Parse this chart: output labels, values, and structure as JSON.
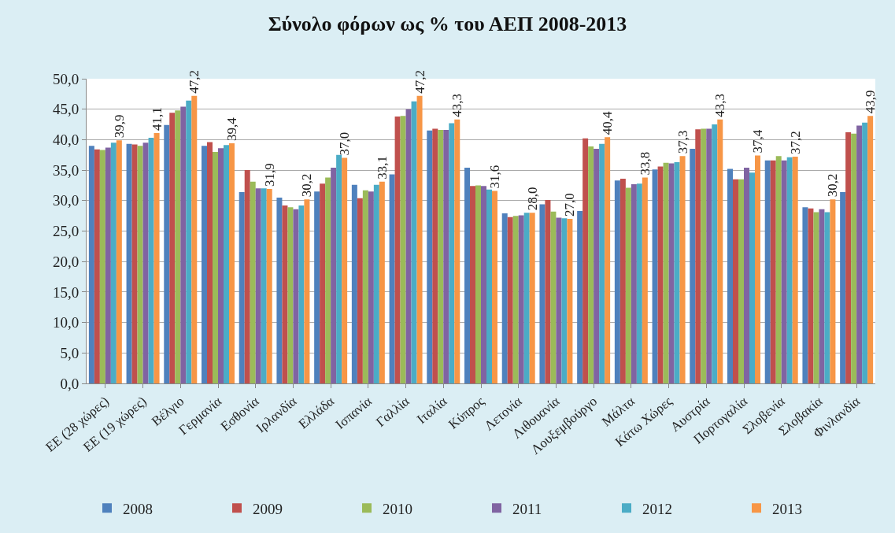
{
  "chart_data": {
    "type": "bar",
    "title": "Σύνολο φόρων ως % του ΑΕΠ 2008-2013",
    "categories": [
      "ΕΕ (28 χώρες)",
      "ΕΕ (19 χώρες)",
      "Βέλγιο",
      "Γερμανία",
      "Εσθονία",
      "Ιρλανδία",
      "Ελλάδα",
      "Ισπανία",
      "Γαλλία",
      "Ιταλία",
      "Κύπρος",
      "Λετονία",
      "Λιθουανία",
      "Λουξεμβούργο",
      "Μάλτα",
      "Κάτω Χώρες",
      "Αυστρία",
      "Πορτογαλία",
      "Σλοβενία",
      "Σλοβακία",
      "Φινλανδία"
    ],
    "series": [
      {
        "name": "2008",
        "color": "#4f81bd",
        "values": [
          39.0,
          39.3,
          42.4,
          39.0,
          31.4,
          30.5,
          31.5,
          32.6,
          34.3,
          41.5,
          35.4,
          27.9,
          29.4,
          28.3,
          33.3,
          35.1,
          38.5,
          35.2,
          36.6,
          28.9,
          31.4
        ]
      },
      {
        "name": "2009",
        "color": "#c0504d",
        "values": [
          38.4,
          39.2,
          44.4,
          39.6,
          35.0,
          29.2,
          32.8,
          30.4,
          43.8,
          41.8,
          32.4,
          27.3,
          30.1,
          40.2,
          33.6,
          35.6,
          41.7,
          33.5,
          36.6,
          28.7,
          41.2
        ]
      },
      {
        "name": "2010",
        "color": "#9bbb59",
        "values": [
          38.3,
          39.0,
          44.8,
          38.0,
          33.1,
          28.9,
          33.8,
          31.7,
          43.9,
          41.6,
          32.5,
          27.5,
          28.2,
          38.9,
          32.1,
          36.2,
          41.8,
          33.5,
          37.3,
          28.1,
          41.0
        ]
      },
      {
        "name": "2011",
        "color": "#8064a2",
        "values": [
          38.7,
          39.5,
          45.4,
          38.6,
          32.0,
          28.6,
          35.4,
          31.5,
          45.0,
          41.6,
          32.4,
          27.6,
          27.2,
          38.5,
          32.7,
          36.1,
          41.8,
          35.4,
          36.6,
          28.6,
          42.3
        ]
      },
      {
        "name": "2012",
        "color": "#4bacc6",
        "values": [
          39.5,
          40.3,
          46.4,
          39.1,
          32.0,
          29.2,
          37.5,
          32.6,
          46.3,
          42.7,
          31.8,
          28.0,
          27.1,
          39.3,
          32.8,
          36.3,
          42.5,
          34.6,
          37.1,
          28.1,
          42.8
        ]
      },
      {
        "name": "2013",
        "color": "#f79646",
        "values": [
          39.9,
          41.1,
          47.2,
          39.4,
          31.9,
          30.2,
          37.0,
          33.1,
          47.2,
          43.3,
          31.6,
          28.0,
          27.0,
          40.4,
          33.8,
          37.3,
          43.3,
          37.4,
          37.2,
          30.2,
          43.9
        ],
        "value_labels": [
          "39,9",
          "41,1",
          "47,2",
          "39,4",
          "31,9",
          "30,2",
          "37,0",
          "33,1",
          "47,2",
          "43,3",
          "31,6",
          "28,0",
          "27,0",
          "40,4",
          "33,8",
          "37,3",
          "43,3",
          "37,4",
          "37,2",
          "30,2",
          "43,9"
        ]
      }
    ],
    "ylim": [
      0,
      50
    ],
    "yticks": [
      {
        "value": 0,
        "label": "0,0"
      },
      {
        "value": 5,
        "label": "5,0"
      },
      {
        "value": 10,
        "label": "10,0"
      },
      {
        "value": 15,
        "label": "15,0"
      },
      {
        "value": 20,
        "label": "20,0"
      },
      {
        "value": 25,
        "label": "25,0"
      },
      {
        "value": 30,
        "label": "30,0"
      },
      {
        "value": 35,
        "label": "35,0"
      },
      {
        "value": 40,
        "label": "40,0"
      },
      {
        "value": 45,
        "label": "45,0"
      },
      {
        "value": 50,
        "label": "50,0"
      }
    ],
    "grid": "y",
    "legend": "bottom"
  }
}
